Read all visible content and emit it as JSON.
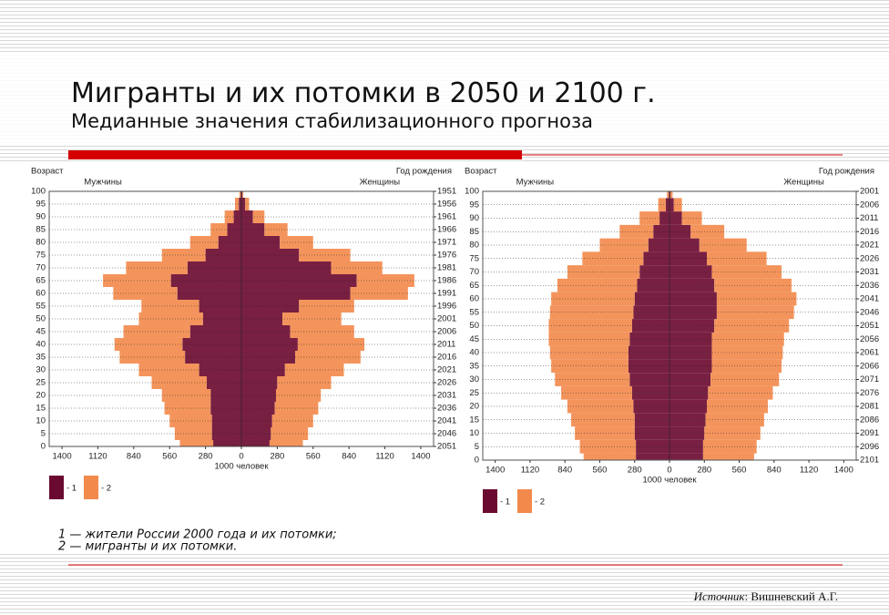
{
  "title": "Мигранты и их потомки в 2050 и 2100 г.",
  "subtitle": "Медианные значения стабилизационного прогноза",
  "notes": [
    "1 — жители России 2000 года и их потомки;",
    "2 — мигранты и их потомки."
  ],
  "source_label": "Источник",
  "source_text": ": Вишневский А.Г.",
  "chart_data": [
    {
      "type": "pyramid",
      "ylabel": "Возраст",
      "y2label": "Год рождения",
      "left_label": "Мужчины",
      "right_label": "Женщины",
      "xlabel": "1000 человек",
      "y": [
        0,
        5,
        10,
        15,
        20,
        25,
        30,
        35,
        40,
        45,
        50,
        55,
        60,
        65,
        70,
        75,
        80,
        85,
        90,
        95,
        100
      ],
      "ylim": [
        0,
        100
      ],
      "yticks": [
        0,
        5,
        10,
        15,
        20,
        25,
        30,
        35,
        40,
        45,
        50,
        55,
        60,
        65,
        70,
        75,
        80,
        85,
        90,
        95,
        100
      ],
      "y2lim": [
        2051,
        1951
      ],
      "y2ticks": [
        2051,
        2046,
        2041,
        2036,
        2031,
        2026,
        2021,
        2016,
        2011,
        2006,
        2001,
        1996,
        1991,
        1986,
        1981,
        1976,
        1971,
        1966,
        1961,
        1956,
        1951
      ],
      "xlim": [
        -1500,
        1500
      ],
      "xticks": [
        {
          "value": -1400,
          "label": "1400"
        },
        {
          "value": -1120,
          "label": "1120"
        },
        {
          "value": -840,
          "label": "840"
        },
        {
          "value": -560,
          "label": "560"
        },
        {
          "value": -280,
          "label": "280"
        },
        0,
        280,
        560,
        840,
        1120,
        1400
      ],
      "series": [
        {
          "name": "- 1",
          "color": "#6b0a30",
          "men": [
            220,
            230,
            230,
            240,
            240,
            270,
            330,
            440,
            460,
            400,
            300,
            330,
            500,
            550,
            420,
            280,
            180,
            110,
            60,
            20,
            5
          ],
          "women": [
            220,
            230,
            240,
            260,
            270,
            280,
            340,
            420,
            440,
            380,
            320,
            450,
            850,
            900,
            700,
            450,
            300,
            180,
            90,
            30,
            8
          ]
        },
        {
          "name": "- 2",
          "color": "#f28a4c",
          "men": [
            260,
            290,
            330,
            360,
            380,
            430,
            470,
            510,
            530,
            520,
            500,
            450,
            500,
            530,
            480,
            340,
            220,
            130,
            70,
            30,
            10
          ],
          "women": [
            260,
            290,
            320,
            340,
            350,
            420,
            460,
            510,
            520,
            500,
            460,
            430,
            450,
            450,
            400,
            400,
            260,
            180,
            90,
            30,
            7
          ]
        }
      ]
    },
    {
      "type": "pyramid",
      "ylabel": "Возраст",
      "y2label": "Год рождения",
      "left_label": "Мужчины",
      "right_label": "Женщины",
      "xlabel": "1000 человек",
      "y": [
        0,
        5,
        10,
        15,
        20,
        25,
        30,
        35,
        40,
        45,
        50,
        55,
        60,
        65,
        70,
        75,
        80,
        85,
        90,
        95,
        100
      ],
      "ylim": [
        0,
        100
      ],
      "yticks": [
        0,
        5,
        10,
        15,
        20,
        25,
        30,
        35,
        40,
        45,
        50,
        55,
        60,
        65,
        70,
        75,
        80,
        85,
        90,
        95,
        100
      ],
      "y2lim": [
        2101,
        2001
      ],
      "y2ticks": [
        2101,
        2096,
        2091,
        2086,
        2081,
        2076,
        2071,
        2066,
        2061,
        2056,
        2051,
        2046,
        2041,
        2036,
        2031,
        2026,
        2021,
        2016,
        2011,
        2006,
        2001
      ],
      "xlim": [
        -1500,
        1500
      ],
      "xticks": [
        {
          "value": -1400,
          "label": "1400"
        },
        {
          "value": -1120,
          "label": "1120"
        },
        {
          "value": -840,
          "label": "840"
        },
        {
          "value": -560,
          "label": "560"
        },
        {
          "value": -280,
          "label": "280"
        },
        0,
        280,
        560,
        840,
        1120,
        1400
      ],
      "series": [
        {
          "name": "- 1",
          "color": "#6b0a30",
          "men": [
            270,
            270,
            280,
            280,
            290,
            300,
            320,
            330,
            330,
            320,
            300,
            290,
            280,
            260,
            240,
            210,
            170,
            130,
            80,
            30,
            5
          ],
          "women": [
            270,
            270,
            280,
            290,
            300,
            310,
            330,
            340,
            340,
            340,
            360,
            380,
            380,
            360,
            340,
            300,
            240,
            170,
            100,
            35,
            8
          ]
        },
        {
          "name": "- 2",
          "color": "#f28a4c",
          "men": [
            420,
            450,
            480,
            510,
            530,
            570,
            600,
            620,
            630,
            650,
            670,
            670,
            670,
            640,
            580,
            490,
            390,
            270,
            160,
            60,
            15
          ],
          "women": [
            410,
            430,
            450,
            470,
            490,
            520,
            550,
            560,
            570,
            580,
            600,
            620,
            640,
            620,
            560,
            480,
            380,
            270,
            160,
            65,
            17
          ]
        }
      ]
    }
  ]
}
